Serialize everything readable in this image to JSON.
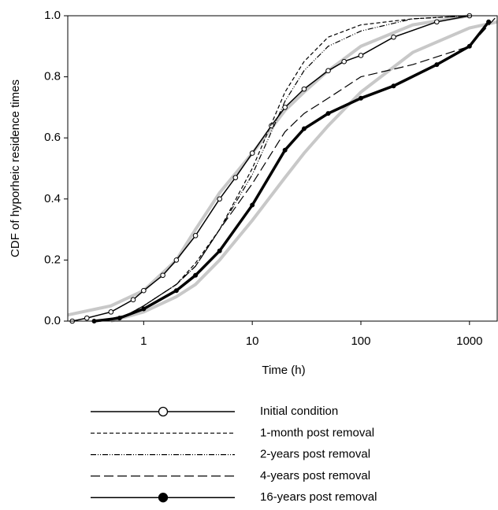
{
  "chart_data": {
    "type": "line",
    "xlabel": "Time (h)",
    "ylabel": "CDF of hyporheic residence times",
    "xscale": "log",
    "xlim": [
      0.2,
      1800
    ],
    "ylim": [
      0,
      1
    ],
    "xticks": [
      1,
      10,
      100,
      1000
    ],
    "yticks": [
      {
        "value": 0,
        "label": "0.0"
      },
      0.2,
      0.4,
      0.6,
      0.8,
      {
        "value": 1,
        "label": "1.0"
      }
    ],
    "legend": "bottom",
    "series": [
      {
        "color": "#c8c8c8",
        "linewidth": 4,
        "dash": "none",
        "x": [
          0.2,
          0.5,
          1,
          2,
          3,
          5,
          10,
          20,
          30,
          50,
          100,
          300,
          1000
        ],
        "values": [
          0.02,
          0.05,
          0.1,
          0.2,
          0.3,
          0.42,
          0.55,
          0.69,
          0.75,
          0.82,
          0.9,
          0.97,
          1.0
        ]
      },
      {
        "color": "#c8c8c8",
        "linewidth": 4,
        "dash": "none",
        "x": [
          0.5,
          1,
          2,
          3,
          5,
          10,
          20,
          30,
          50,
          100,
          300,
          1000,
          1800
        ],
        "values": [
          0.0,
          0.03,
          0.08,
          0.12,
          0.2,
          0.33,
          0.47,
          0.55,
          0.64,
          0.75,
          0.88,
          0.96,
          0.98
        ]
      },
      {
        "name": "Initial condition",
        "color": "#000000",
        "linewidth": 1.5,
        "dash": "none",
        "marker": "open-circle",
        "x": [
          0.22,
          0.3,
          0.5,
          0.8,
          1,
          1.5,
          2,
          3,
          5,
          7,
          10,
          15,
          20,
          30,
          50,
          70,
          100,
          200,
          500,
          1000
        ],
        "values": [
          0.0,
          0.01,
          0.03,
          0.07,
          0.1,
          0.15,
          0.2,
          0.28,
          0.4,
          0.47,
          0.55,
          0.64,
          0.7,
          0.76,
          0.82,
          0.85,
          0.87,
          0.93,
          0.98,
          1.0
        ]
      },
      {
        "name": "1-month post removal",
        "color": "#000000",
        "linewidth": 1.2,
        "dash": "5,3",
        "marker": null,
        "x": [
          0.4,
          0.7,
          1,
          2,
          3,
          5,
          10,
          20,
          30,
          50,
          100,
          300,
          1000
        ],
        "values": [
          0.0,
          0.02,
          0.05,
          0.12,
          0.19,
          0.3,
          0.5,
          0.75,
          0.85,
          0.93,
          0.97,
          0.99,
          1.0
        ]
      },
      {
        "name": "2-years post removal",
        "color": "#000000",
        "linewidth": 1.2,
        "dash": "7,2,1,2,1,2",
        "marker": null,
        "x": [
          0.4,
          0.7,
          1,
          2,
          3,
          5,
          10,
          20,
          30,
          50,
          100,
          300,
          1000
        ],
        "values": [
          0.0,
          0.02,
          0.05,
          0.12,
          0.18,
          0.3,
          0.48,
          0.72,
          0.82,
          0.9,
          0.95,
          0.99,
          1.0
        ]
      },
      {
        "name": "4-years post removal",
        "color": "#000000",
        "linewidth": 1.2,
        "dash": "12,5",
        "marker": null,
        "x": [
          0.4,
          0.7,
          1,
          2,
          3,
          5,
          10,
          20,
          30,
          50,
          100,
          300,
          1000,
          1800
        ],
        "values": [
          0.0,
          0.02,
          0.05,
          0.12,
          0.18,
          0.3,
          0.45,
          0.62,
          0.68,
          0.73,
          0.8,
          0.84,
          0.9,
          1.0
        ]
      },
      {
        "name": "16-years post removal",
        "color": "#000000",
        "linewidth": 3.5,
        "dash": "none",
        "marker": "filled-circle",
        "x": [
          0.35,
          0.6,
          1,
          2,
          3,
          5,
          10,
          20,
          30,
          50,
          100,
          200,
          500,
          1000,
          1500
        ],
        "values": [
          0.0,
          0.01,
          0.04,
          0.1,
          0.15,
          0.23,
          0.38,
          0.56,
          0.63,
          0.68,
          0.73,
          0.77,
          0.84,
          0.9,
          0.98
        ]
      }
    ]
  }
}
